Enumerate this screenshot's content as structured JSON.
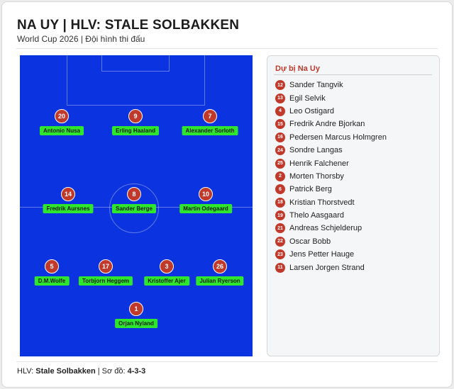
{
  "header": {
    "title": "NA UY | HLV: STALE SOLBAKKEN",
    "subtitle": "World Cup 2026 | Đội hình thi đấu"
  },
  "colors": {
    "pitch": "#0b33df",
    "name_tag": "#2ee62e",
    "number_badge": "#c0392b",
    "accent": "#c0392b"
  },
  "lineup": [
    {
      "number": "20",
      "name": "Antonio Nusa"
    },
    {
      "number": "9",
      "name": "Erling Haaland"
    },
    {
      "number": "7",
      "name": "Alexander Sorloth"
    },
    {
      "number": "14",
      "name": "Fredrik Aursnes"
    },
    {
      "number": "8",
      "name": "Sander Berge"
    },
    {
      "number": "10",
      "name": "Martin Odegaard"
    },
    {
      "number": "5",
      "name": "D.M.Wolfe"
    },
    {
      "number": "17",
      "name": "Torbjorn Heggem"
    },
    {
      "number": "3",
      "name": "Kristoffer Ajer"
    },
    {
      "number": "26",
      "name": "Julian Ryerson"
    },
    {
      "number": "1",
      "name": "Orjan Nyland"
    }
  ],
  "bench": {
    "title": "Dự bị Na Uy",
    "players": [
      {
        "number": "12",
        "name": "Sander Tangvik"
      },
      {
        "number": "13",
        "name": "Egil Selvik"
      },
      {
        "number": "4",
        "name": "Leo Ostigard"
      },
      {
        "number": "15",
        "name": "Fredrik Andre Bjorkan"
      },
      {
        "number": "16",
        "name": "Pedersen Marcus Holmgren"
      },
      {
        "number": "24",
        "name": "Sondre Langas"
      },
      {
        "number": "25",
        "name": "Henrik Falchener"
      },
      {
        "number": "2",
        "name": "Morten Thorsby"
      },
      {
        "number": "6",
        "name": "Patrick Berg"
      },
      {
        "number": "18",
        "name": "Kristian Thorstvedt"
      },
      {
        "number": "19",
        "name": "Thelo Aasgaard"
      },
      {
        "number": "21",
        "name": "Andreas Schjelderup"
      },
      {
        "number": "22",
        "name": "Oscar Bobb"
      },
      {
        "number": "23",
        "name": "Jens Petter Hauge"
      },
      {
        "number": "11",
        "name": "Larsen Jorgen Strand"
      }
    ]
  },
  "footer": {
    "coach_label": "HLV: ",
    "coach_name": "Stale Solbakken",
    "formation_label": " | Sơ đồ: ",
    "formation": "4-3-3"
  }
}
